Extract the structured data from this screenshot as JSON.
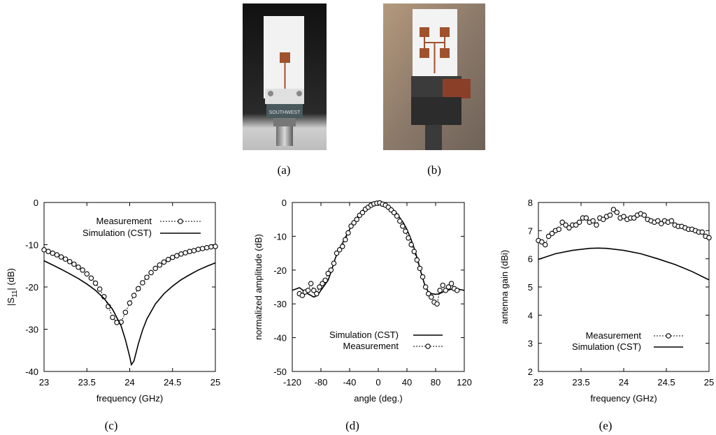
{
  "captions": {
    "a": "(a)",
    "b": "(b)",
    "c": "(c)",
    "d": "(d)",
    "e": "(e)"
  },
  "photo_a": {
    "connector_text": "SOUTHWEST"
  },
  "colors": {
    "line": "#000000",
    "background": "#ffffff",
    "substrate": "#ffffff",
    "copper": "#a0522d"
  },
  "chart_data": [
    {
      "type": "line",
      "xlabel": "frequency (GHz)",
      "ylabel": "|S11| (dB)",
      "ylabel_main": "|S",
      "ylabel_sub": "11",
      "ylabel_tail": "| (dB)",
      "xlim": [
        23,
        25
      ],
      "ylim": [
        -40,
        0
      ],
      "xticks": [
        23,
        23.5,
        24,
        24.5,
        25
      ],
      "xtick_labels": [
        "23",
        "23.5",
        "24",
        "24.5",
        "25"
      ],
      "yticks": [
        -40,
        -30,
        -20,
        -10,
        0
      ],
      "ytick_labels": [
        "-40",
        "-30",
        "-20",
        "-10",
        "0"
      ],
      "legend_position": "top-right",
      "series": [
        {
          "name": "Measurement",
          "style": "dotted-circle",
          "x": [
            23.0,
            23.05,
            23.1,
            23.15,
            23.2,
            23.25,
            23.3,
            23.35,
            23.4,
            23.45,
            23.5,
            23.55,
            23.6,
            23.65,
            23.7,
            23.75,
            23.8,
            23.85,
            23.9,
            23.95,
            24.0,
            24.05,
            24.1,
            24.15,
            24.2,
            24.25,
            24.3,
            24.35,
            24.4,
            24.45,
            24.5,
            24.55,
            24.6,
            24.65,
            24.7,
            24.75,
            24.8,
            24.85,
            24.9,
            24.95,
            25.0
          ],
          "y": [
            -11.2,
            -11.6,
            -12.0,
            -12.4,
            -12.9,
            -13.4,
            -14.0,
            -14.6,
            -15.3,
            -16.0,
            -16.9,
            -17.9,
            -19.1,
            -20.5,
            -22.3,
            -24.6,
            -27.2,
            -28.4,
            -28.3,
            -26.0,
            -23.8,
            -22.0,
            -20.4,
            -19.0,
            -17.7,
            -16.6,
            -15.6,
            -14.8,
            -14.1,
            -13.5,
            -13.0,
            -12.6,
            -12.2,
            -11.9,
            -11.6,
            -11.4,
            -11.1,
            -10.9,
            -10.7,
            -10.5,
            -10.4
          ]
        },
        {
          "name": "Simulation (CST)",
          "style": "solid",
          "x": [
            23.0,
            23.1,
            23.2,
            23.3,
            23.4,
            23.5,
            23.6,
            23.7,
            23.8,
            23.9,
            23.95,
            24.0,
            24.02,
            24.05,
            24.1,
            24.15,
            24.2,
            24.3,
            24.4,
            24.5,
            24.6,
            24.7,
            24.8,
            24.9,
            25.0
          ],
          "y": [
            -13.8,
            -14.8,
            -15.8,
            -16.9,
            -18.0,
            -19.3,
            -20.8,
            -22.7,
            -25.3,
            -29.2,
            -32.5,
            -36.5,
            -38.4,
            -37.5,
            -33.5,
            -30.2,
            -27.6,
            -24.0,
            -21.6,
            -19.8,
            -18.3,
            -17.1,
            -16.0,
            -15.1,
            -14.3
          ]
        }
      ]
    },
    {
      "type": "line",
      "xlabel": "angle (deg.)",
      "ylabel": "normalized amplitude (dB)",
      "xlim": [
        -120,
        120
      ],
      "ylim": [
        -50,
        0
      ],
      "xticks": [
        -120,
        -80,
        -40,
        0,
        40,
        80,
        120
      ],
      "xtick_labels": [
        "-120",
        "-80",
        "-40",
        "0",
        "40",
        "80",
        "120"
      ],
      "yticks": [
        -50,
        -40,
        -30,
        -20,
        -10,
        0
      ],
      "ytick_labels": [
        "-50",
        "-40",
        "-30",
        "-20",
        "-10",
        "0"
      ],
      "legend_position": "bottom-right",
      "series": [
        {
          "name": "Simulation  (CST)",
          "style": "solid",
          "x": [
            -120,
            -110,
            -100,
            -90,
            -85,
            -80,
            -75,
            -70,
            -65,
            -60,
            -55,
            -50,
            -45,
            -40,
            -35,
            -30,
            -25,
            -20,
            -15,
            -10,
            -5,
            0,
            5,
            10,
            15,
            20,
            25,
            30,
            35,
            40,
            45,
            50,
            55,
            60,
            65,
            70,
            75,
            80,
            85,
            90,
            95,
            100,
            105,
            110,
            115,
            120
          ],
          "y": [
            -26,
            -25.2,
            -26.8,
            -28,
            -27.5,
            -26,
            -24.5,
            -23,
            -20,
            -16.5,
            -14,
            -12,
            -10,
            -8,
            -6,
            -4.5,
            -3,
            -2,
            -1.2,
            -0.6,
            -0.2,
            0,
            -0.2,
            -0.6,
            -1.2,
            -2,
            -3,
            -4.5,
            -6,
            -8,
            -10.5,
            -13.5,
            -17,
            -21,
            -24.5,
            -26.5,
            -27,
            -27.2,
            -27,
            -26.5,
            -26,
            -25.8,
            -25.5,
            -25.5,
            -25.8,
            -26
          ]
        },
        {
          "name": "Measurement",
          "style": "dotted-circle",
          "x": [
            -110,
            -106,
            -102,
            -98,
            -94,
            -90,
            -86,
            -82,
            -78,
            -74,
            -70,
            -66,
            -62,
            -58,
            -54,
            -50,
            -46,
            -42,
            -38,
            -34,
            -30,
            -26,
            -22,
            -18,
            -14,
            -10,
            -6,
            -2,
            2,
            6,
            10,
            14,
            18,
            22,
            26,
            30,
            34,
            38,
            42,
            46,
            50,
            54,
            58,
            62,
            66,
            70,
            74,
            78,
            82,
            86,
            90,
            94,
            98,
            102,
            106,
            110
          ],
          "y": [
            -27,
            -27.5,
            -26.5,
            -26,
            -24,
            -26,
            -27,
            -25,
            -24,
            -23,
            -21,
            -20,
            -18,
            -15,
            -14,
            -13,
            -11,
            -9,
            -7,
            -6,
            -5,
            -3.8,
            -3,
            -2,
            -1.4,
            -0.8,
            -0.4,
            -0.2,
            -0.1,
            -0.5,
            -0.8,
            -1.4,
            -2.2,
            -3,
            -4,
            -5.5,
            -7,
            -8.5,
            -10.5,
            -12.5,
            -14.5,
            -17,
            -19.5,
            -22,
            -25,
            -27,
            -28,
            -29.5,
            -30,
            -26,
            -24.5,
            -26,
            -25,
            -24,
            -25.5,
            -26
          ]
        }
      ]
    },
    {
      "type": "line",
      "xlabel": "frequency (GHz)",
      "ylabel": "antenna gain (dBi)",
      "xlim": [
        23,
        25
      ],
      "ylim": [
        2,
        8
      ],
      "xticks": [
        23,
        23.5,
        24,
        24.5,
        25
      ],
      "xtick_labels": [
        "23",
        "23.5",
        "24",
        "24.5",
        "25"
      ],
      "yticks": [
        2,
        3,
        4,
        5,
        6,
        7,
        8
      ],
      "ytick_labels": [
        "2",
        "3",
        "4",
        "5",
        "6",
        "7",
        "8"
      ],
      "legend_position": "bottom-right",
      "series": [
        {
          "name": "Measurement",
          "style": "dotted-circle",
          "x": [
            23.0,
            23.04,
            23.08,
            23.12,
            23.16,
            23.2,
            23.24,
            23.28,
            23.32,
            23.36,
            23.4,
            23.44,
            23.48,
            23.52,
            23.56,
            23.6,
            23.64,
            23.68,
            23.72,
            23.76,
            23.8,
            23.84,
            23.88,
            23.92,
            23.96,
            24.0,
            24.04,
            24.08,
            24.12,
            24.16,
            24.2,
            24.24,
            24.28,
            24.32,
            24.36,
            24.4,
            24.44,
            24.48,
            24.52,
            24.56,
            24.6,
            24.64,
            24.68,
            24.72,
            24.76,
            24.8,
            24.84,
            24.88,
            24.92,
            24.96,
            25.0
          ],
          "y": [
            6.65,
            6.6,
            6.5,
            6.8,
            6.9,
            7.0,
            7.05,
            7.3,
            7.2,
            7.1,
            7.2,
            7.2,
            7.3,
            7.45,
            7.45,
            7.3,
            7.35,
            7.2,
            7.45,
            7.4,
            7.5,
            7.55,
            7.75,
            7.65,
            7.45,
            7.5,
            7.4,
            7.45,
            7.45,
            7.55,
            7.6,
            7.55,
            7.4,
            7.35,
            7.3,
            7.35,
            7.25,
            7.35,
            7.3,
            7.35,
            7.2,
            7.15,
            7.15,
            7.1,
            7.05,
            7.05,
            7.0,
            6.95,
            6.95,
            6.8,
            6.75
          ]
        },
        {
          "name": "Simulation  (CST)",
          "style": "solid",
          "x": [
            23.0,
            23.2,
            23.4,
            23.6,
            23.7,
            23.8,
            24.0,
            24.2,
            24.4,
            24.6,
            24.8,
            25.0
          ],
          "y": [
            5.98,
            6.18,
            6.3,
            6.37,
            6.38,
            6.37,
            6.3,
            6.18,
            6.0,
            5.8,
            5.55,
            5.25
          ]
        }
      ]
    }
  ]
}
